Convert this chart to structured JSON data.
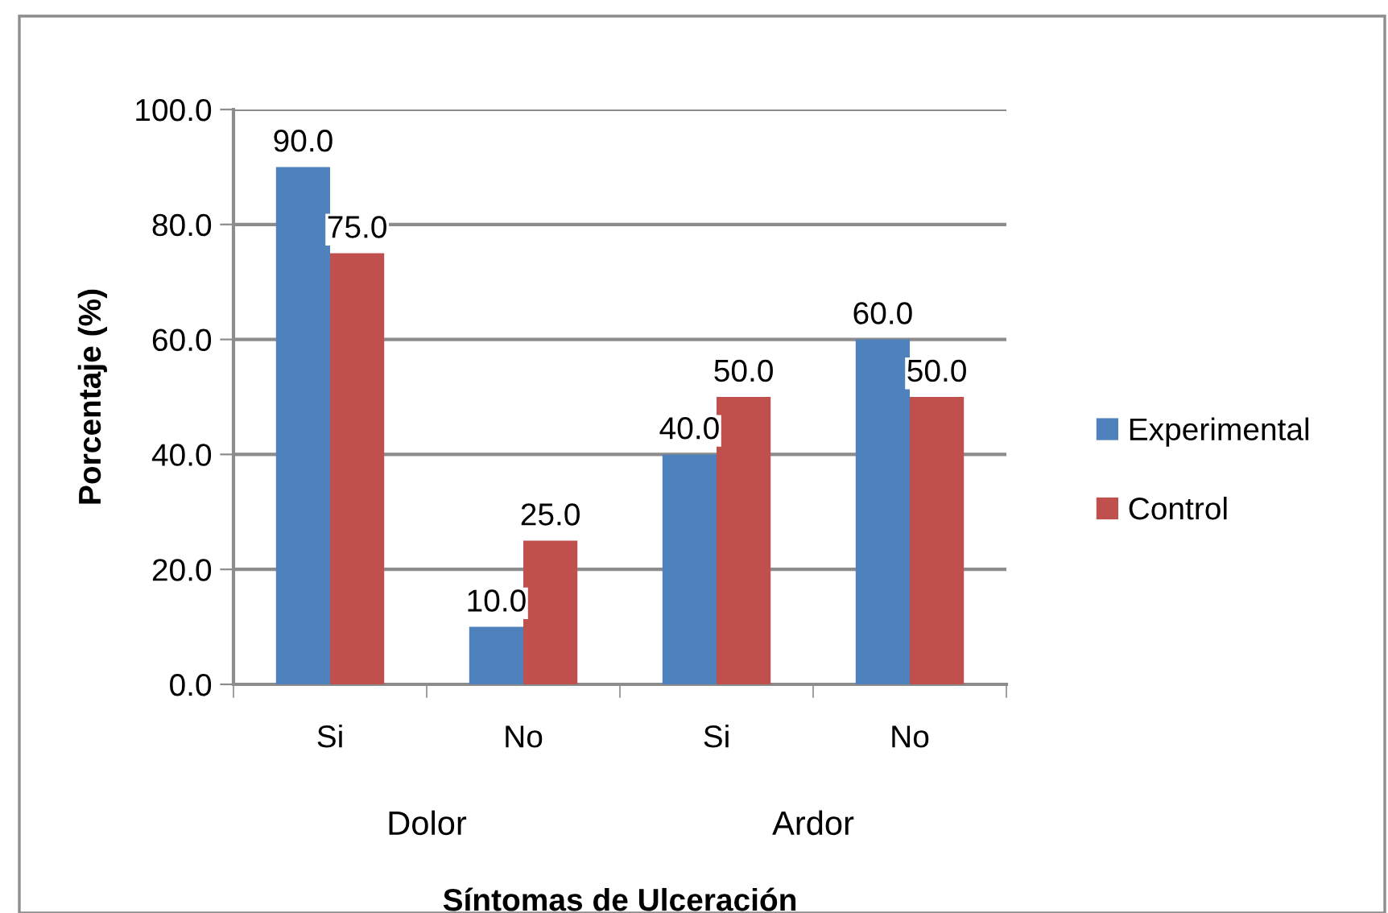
{
  "chart_data": {
    "type": "bar",
    "categories": [
      "Si",
      "No",
      "Si",
      "No"
    ],
    "series": [
      {
        "name": "Experimental",
        "color": "#4f81bd",
        "values": [
          90.0,
          10.0,
          40.0,
          60.0
        ],
        "value_labels": [
          "90.0",
          "10.0",
          "40.0",
          "60.0"
        ]
      },
      {
        "name": "Control",
        "color": "#c0504d",
        "values": [
          75.0,
          25.0,
          50.0,
          50.0
        ],
        "value_labels": [
          "75.0",
          "25.0",
          "50.0",
          "50.0"
        ]
      }
    ],
    "ylim": [
      0,
      100
    ],
    "yticks": [
      {
        "value": 0,
        "label": "0.0"
      },
      {
        "value": 20,
        "label": "20.0"
      },
      {
        "value": 40,
        "label": "40.0"
      },
      {
        "value": 60,
        "label": "60.0"
      },
      {
        "value": 80,
        "label": "80.0"
      },
      {
        "value": 100,
        "label": "100.0"
      }
    ],
    "xlabel": "Síntomas de Ulceración",
    "ylabel": "Porcentaje (%)",
    "annotations": [
      "Dolor",
      "Ardor"
    ],
    "grid": "y",
    "legend": "right"
  }
}
